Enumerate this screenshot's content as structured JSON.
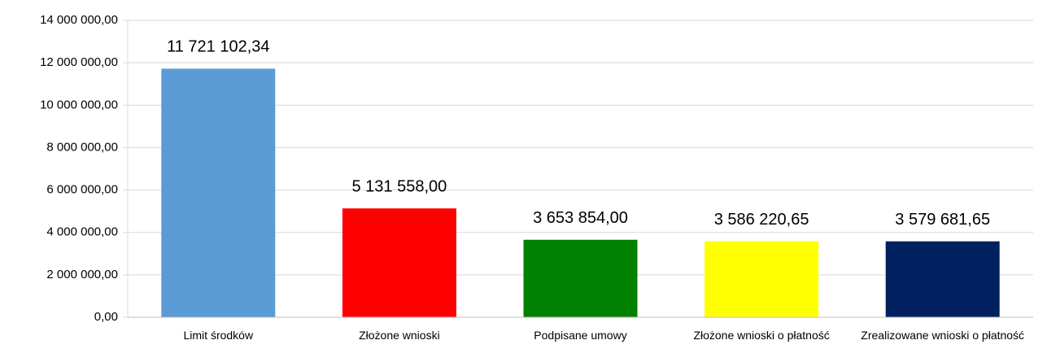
{
  "chart_data": {
    "type": "bar",
    "categories": [
      "Limit środków",
      "Złożone wnioski",
      "Podpisane umowy",
      "Złożone wnioski o płatność",
      "Zrealizowane wnioski o płatność"
    ],
    "values": [
      11721102.34,
      5131558.0,
      3653854.0,
      3586220.65,
      3579681.65
    ],
    "value_labels": [
      "11 721 102,34",
      "5 131 558,00",
      "3 653 854,00",
      "3 586 220,65",
      "3 579 681,65"
    ],
    "colors": [
      "#5b9bd5",
      "#ff0000",
      "#008000",
      "#ffff00",
      "#002060"
    ],
    "ylim": [
      0,
      14000000
    ],
    "yticks": [
      {
        "value": 0,
        "label": "0,00"
      },
      {
        "value": 2000000,
        "label": "2 000 000,00"
      },
      {
        "value": 4000000,
        "label": "4 000 000,00"
      },
      {
        "value": 6000000,
        "label": "6 000 000,00"
      },
      {
        "value": 8000000,
        "label": "8 000 000,00"
      },
      {
        "value": 10000000,
        "label": "10 000 000,00"
      },
      {
        "value": 12000000,
        "label": "12 000 000,00"
      },
      {
        "value": 14000000,
        "label": "14 000 000,00"
      }
    ],
    "grid": true
  }
}
